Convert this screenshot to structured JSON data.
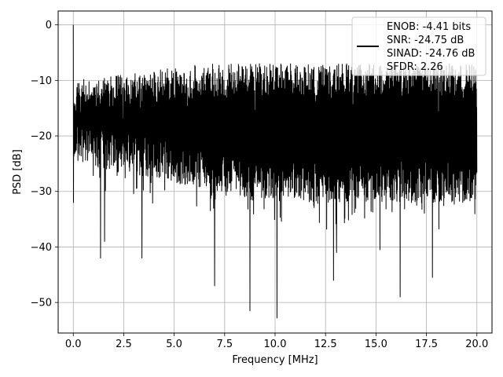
{
  "chart_data": {
    "type": "line",
    "title": "",
    "xlabel": "Frequency [MHz]",
    "ylabel": "PSD [dB]",
    "xlim": [
      -0.75,
      20.75
    ],
    "ylim": [
      -55.5,
      2.5
    ],
    "x_ticks": [
      0.0,
      2.5,
      5.0,
      7.5,
      10.0,
      12.5,
      15.0,
      17.5,
      20.0
    ],
    "x_tick_labels": [
      "0.0",
      "2.5",
      "5.0",
      "7.5",
      "10.0",
      "12.5",
      "15.0",
      "17.5",
      "20.0"
    ],
    "y_ticks": [
      0,
      -10,
      -20,
      -30,
      -40,
      -50
    ],
    "y_tick_labels": [
      "0",
      "−10",
      "−20",
      "−30",
      "−40",
      "−50"
    ],
    "grid": true,
    "legend_position": "top-right",
    "legend_lines": [
      "ENOB: -4.41 bits",
      "SNR: -24.75 dB",
      "SINAD: -24.76 dB",
      "SFDR: 2.26"
    ],
    "series_color": "#000000",
    "grid_color": "#b0b0b0",
    "x_range": [
      0.0,
      20.0
    ],
    "dc_peak_db": 0,
    "noise_floor_db": -20,
    "envelope_upper_db": [
      -10,
      -7
    ],
    "envelope_lower_db": [
      -25,
      -32
    ],
    "deep_nulls": [
      {
        "x": 1.35,
        "y": -42
      },
      {
        "x": 1.55,
        "y": -39
      },
      {
        "x": 3.4,
        "y": -42
      },
      {
        "x": 7.0,
        "y": -47
      },
      {
        "x": 8.75,
        "y": -51.5
      },
      {
        "x": 10.1,
        "y": -52.8
      },
      {
        "x": 12.9,
        "y": -46
      },
      {
        "x": 13.05,
        "y": -41
      },
      {
        "x": 16.2,
        "y": -49
      },
      {
        "x": 15.2,
        "y": -40.5
      },
      {
        "x": 17.8,
        "y": -45.5
      }
    ]
  }
}
